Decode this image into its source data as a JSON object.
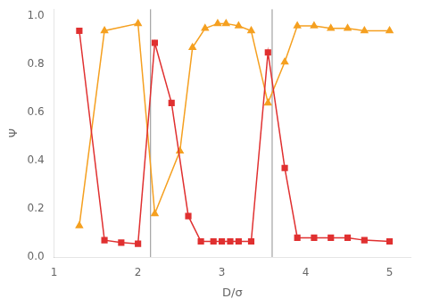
{
  "chart_data": {
    "type": "line",
    "xlabel": "D/σ",
    "ylabel": "Ψ",
    "series": [
      {
        "color": "#e03030",
        "marker": "square",
        "x": [
          1.3,
          1.6,
          1.8,
          2.0,
          2.2,
          2.4,
          2.6,
          2.75,
          2.9,
          3.0,
          3.1,
          3.2,
          3.35,
          3.55,
          3.75,
          3.9,
          4.1,
          4.3,
          4.5,
          4.7,
          5.0
        ],
        "values": [
          0.94,
          0.07,
          0.06,
          0.055,
          0.89,
          0.64,
          0.17,
          0.065,
          0.065,
          0.065,
          0.065,
          0.065,
          0.065,
          0.85,
          0.37,
          0.08,
          0.08,
          0.08,
          0.08,
          0.07,
          0.065
        ]
      },
      {
        "color": "#f5a020",
        "marker": "triangle",
        "x": [
          1.3,
          1.6,
          2.0,
          2.2,
          2.5,
          2.65,
          2.8,
          2.95,
          3.05,
          3.2,
          3.35,
          3.55,
          3.75,
          3.9,
          4.1,
          4.3,
          4.5,
          4.7,
          5.0
        ],
        "values": [
          0.13,
          0.94,
          0.97,
          0.18,
          0.44,
          0.87,
          0.95,
          0.97,
          0.97,
          0.96,
          0.94,
          0.64,
          0.81,
          0.96,
          0.96,
          0.95,
          0.95,
          0.94,
          0.94
        ]
      }
    ],
    "vlines": {
      "x": [
        2.15,
        3.6
      ],
      "color": "#909090"
    },
    "xlim": [
      1.0,
      5.25
    ],
    "ylim": [
      0.0,
      1.03
    ],
    "xticks": [
      1,
      2,
      3,
      4,
      5
    ],
    "yticks": [
      {
        "value": 0,
        "label": "0.0"
      },
      0.2,
      0.4,
      0.6,
      0.8,
      {
        "value": 1.0,
        "label": "1.0"
      }
    ],
    "grid": false
  }
}
